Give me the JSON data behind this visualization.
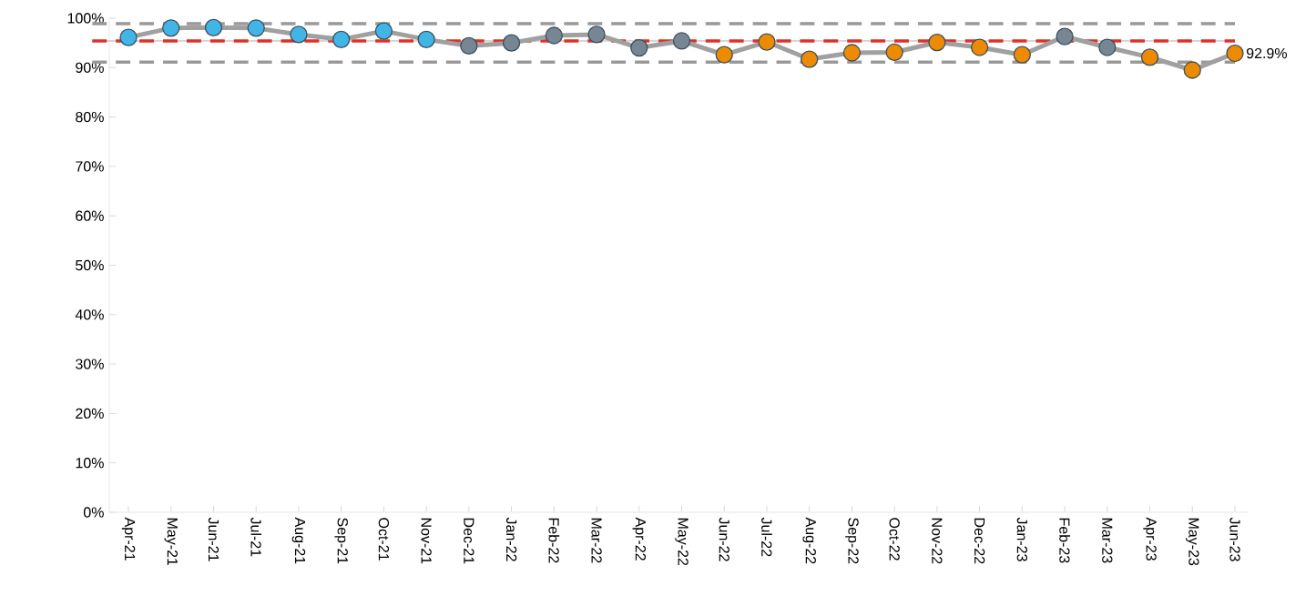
{
  "chart_data": {
    "type": "line",
    "categories": [
      "Apr-21",
      "May-21",
      "Jun-21",
      "Jul-21",
      "Aug-21",
      "Sep-21",
      "Oct-21",
      "Nov-21",
      "Dec-21",
      "Jan-22",
      "Feb-22",
      "Mar-22",
      "Apr-22",
      "May-22",
      "Jun-22",
      "Jul-22",
      "Aug-22",
      "Sep-22",
      "Oct-22",
      "Nov-22",
      "Dec-22",
      "Jan-23",
      "Feb-23",
      "Mar-23",
      "Apr-23",
      "May-23",
      "Jun-23"
    ],
    "series": [
      {
        "color": "#a0a0a0",
        "values": [
          96.1,
          98.0,
          98.1,
          98.0,
          96.7,
          95.7,
          97.4,
          95.7,
          94.4,
          95.0,
          96.5,
          96.7,
          94.0,
          95.4,
          92.6,
          95.2,
          91.7,
          93.0,
          93.1,
          95.1,
          94.1,
          92.6,
          96.3,
          94.1,
          92.1,
          89.5,
          92.9
        ],
        "colors": [
          "#41b6e6",
          "#41b6e6",
          "#41b6e6",
          "#41b6e6",
          "#41b6e6",
          "#41b6e6",
          "#41b6e6",
          "#41b6e6",
          "#768692",
          "#768692",
          "#768692",
          "#768692",
          "#768692",
          "#768692",
          "#ed8b00",
          "#ed8b00",
          "#ed8b00",
          "#ed8b00",
          "#ed8b00",
          "#ed8b00",
          "#ed8b00",
          "#ed8b00",
          "#768692",
          "#768692",
          "#ed8b00",
          "#ed8b00",
          "#ed8b00"
        ],
        "value_labels": [
          null,
          null,
          null,
          null,
          null,
          null,
          null,
          null,
          null,
          null,
          null,
          null,
          null,
          null,
          null,
          null,
          null,
          null,
          null,
          null,
          null,
          null,
          null,
          null,
          null,
          null,
          "92.9%"
        ]
      }
    ],
    "ylim": [
      0,
      100
    ],
    "yticks": [
      {
        "value": 0,
        "label": "0%"
      },
      {
        "value": 10,
        "label": "10%"
      },
      {
        "value": 20,
        "label": "20%"
      },
      {
        "value": 30,
        "label": "30%"
      },
      {
        "value": 40,
        "label": "40%"
      },
      {
        "value": 50,
        "label": "50%"
      },
      {
        "value": 60,
        "label": "60%"
      },
      {
        "value": 70,
        "label": "70%"
      },
      {
        "value": 80,
        "label": "80%"
      },
      {
        "value": 90,
        "label": "90%"
      },
      {
        "value": 100,
        "label": "100%"
      }
    ],
    "ref_lines": [
      {
        "axis": "y",
        "value": 98.9,
        "color": "#999999",
        "line_style": "dashed"
      },
      {
        "axis": "y",
        "value": 91.1,
        "color": "#999999",
        "line_style": "dashed"
      },
      {
        "axis": "y",
        "value": 95.4,
        "color": "#b0b0b0",
        "line_style": "solid"
      },
      {
        "axis": "y",
        "value": 95.4,
        "color": "#e03127",
        "line_style": "dashed"
      }
    ],
    "marker": "circle",
    "line_style": "solid",
    "grid": false
  }
}
